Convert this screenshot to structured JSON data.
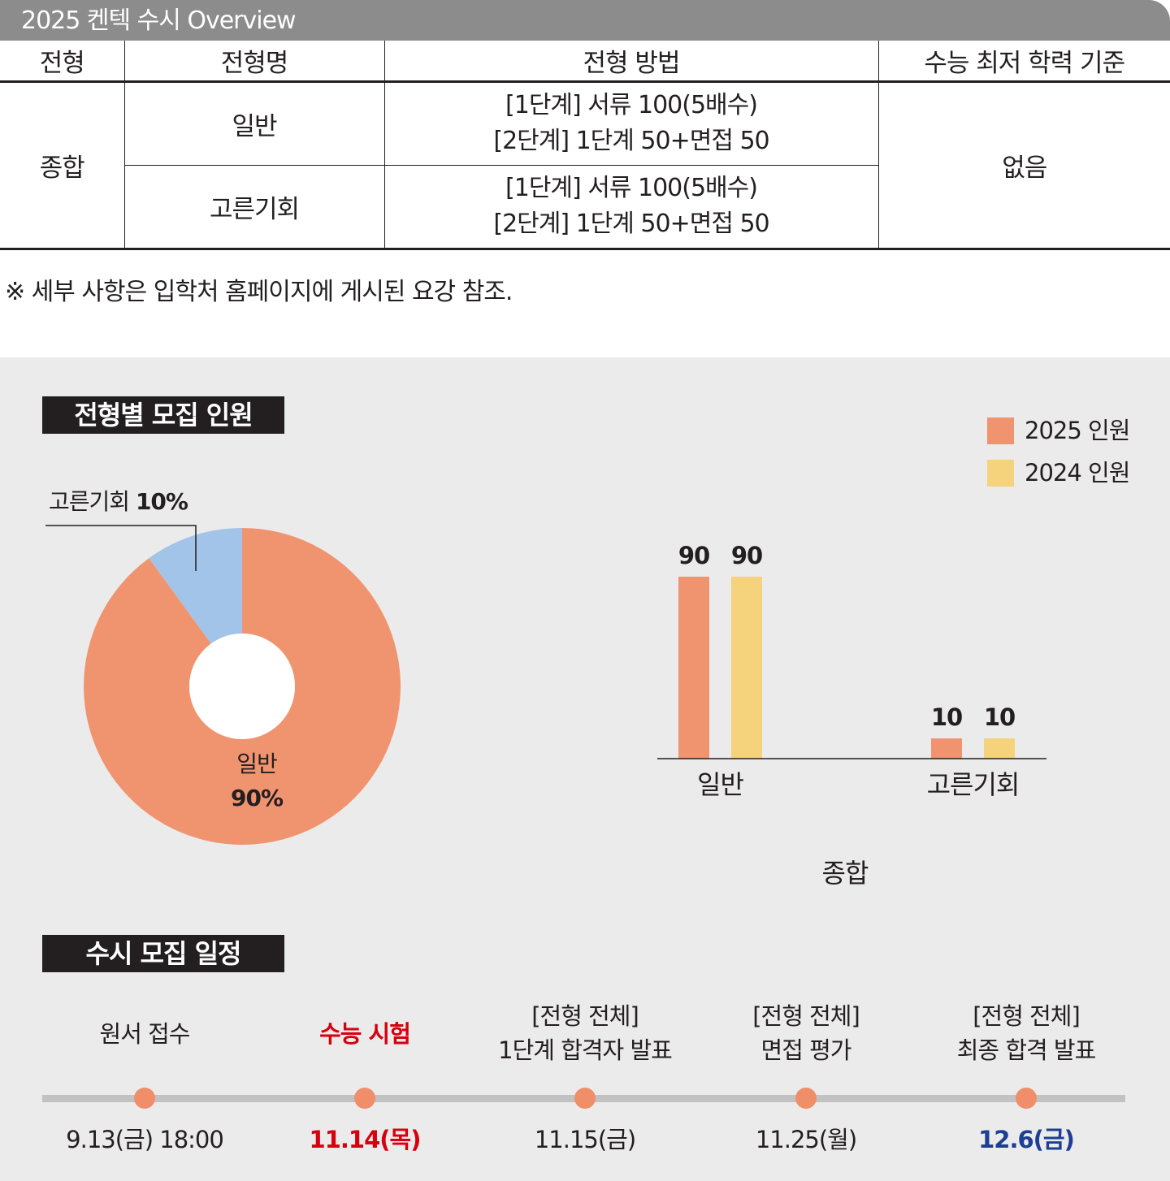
{
  "header": {
    "title": "2025 켄텍 수시 Overview"
  },
  "table": {
    "columns": [
      "전형",
      "전형명",
      "전형 방법",
      "수능 최저 학력 기준"
    ],
    "category": "종합",
    "rows": [
      {
        "name": "일반",
        "method_line1": "[1단계] 서류 100(5배수)",
        "method_line2": "[2단계] 1단계 50+면접 50"
      },
      {
        "name": "고른기회",
        "method_line1": "[1단계] 서류 100(5배수)",
        "method_line2": "[2단계] 1단계 50+면접 50"
      }
    ],
    "minimum": "없음"
  },
  "note": "※ 세부 사항은 입학처 홈페이지에 게시된 요강 참조.",
  "recruit": {
    "heading": "전형별 모집 인원",
    "donut": {
      "slices": [
        {
          "label": "일반",
          "percent_label": "90%",
          "value": 90,
          "color": "#f09470"
        },
        {
          "label": "고른기회",
          "percent_label": "10%",
          "value": 10,
          "color": "#a2c4e8"
        }
      ]
    },
    "legend": [
      {
        "label": "2025 인원",
        "color": "#f09470"
      },
      {
        "label": "2024 인원",
        "color": "#f5d27c"
      }
    ],
    "group_label": "종합"
  },
  "chart_data": {
    "type": "bar",
    "categories": [
      "일반",
      "고른기회"
    ],
    "series": [
      {
        "name": "2025 인원",
        "values": [
          90,
          10
        ],
        "color": "#f09470"
      },
      {
        "name": "2024 인원",
        "values": [
          90,
          10
        ],
        "color": "#f5d27c"
      }
    ],
    "xlabel": "종합",
    "ylabel": "",
    "ylim": [
      0,
      90
    ],
    "legend": "top-right",
    "grid": false
  },
  "schedule": {
    "heading": "수시 모집 일정",
    "events": [
      {
        "line1": "원서 접수",
        "line2": "",
        "date": "9.13(금) 18:00",
        "style": ""
      },
      {
        "line1": "수능 시험",
        "line2": "",
        "date": "11.14(목)",
        "style": "red"
      },
      {
        "line1": "[전형 전체]",
        "line2": "1단계 합격자 발표",
        "date": "11.15(금)",
        "style": ""
      },
      {
        "line1": "[전형 전체]",
        "line2": "면접 평가",
        "date": "11.25(월)",
        "style": ""
      },
      {
        "line1": "[전형 전체]",
        "line2": "최종 합격 발표",
        "date": "12.6(금)",
        "style": "blue"
      }
    ]
  }
}
